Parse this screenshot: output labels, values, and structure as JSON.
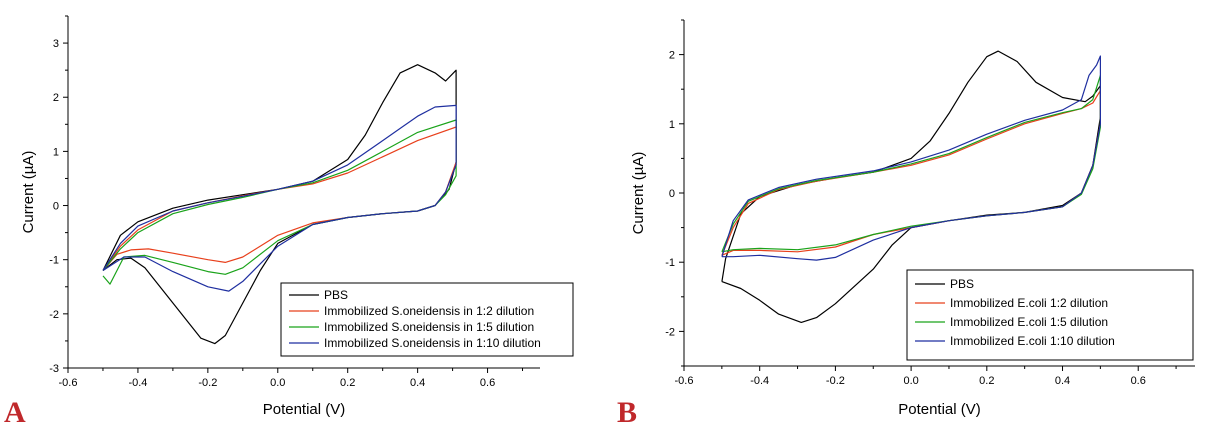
{
  "colors": {
    "PBS": "#000000",
    "red": "#e8401c",
    "green": "#1aa31a",
    "blue": "#1f2fa0",
    "panel_letter": "#c0282b"
  },
  "chart_data": [
    {
      "panel_label": "A",
      "type": "line",
      "xlabel": "Potential (V)",
      "ylabel": "Current (µA)",
      "xlim": [
        -0.6,
        0.75
      ],
      "ylim": [
        -3,
        3.5
      ],
      "xticks": [
        "-0.6",
        "-0.4",
        "-0.2",
        "0.0",
        "0.2",
        "0.4",
        "0.6"
      ],
      "yticks": [
        "-3",
        "-2",
        "-1",
        "0",
        "1",
        "2",
        "3"
      ],
      "xtick_values": [
        -0.6,
        -0.4,
        -0.2,
        0.0,
        0.2,
        0.4,
        0.6
      ],
      "ytick_values": [
        -3,
        -2,
        -1,
        0,
        1,
        2,
        3
      ],
      "legend_position": "lower-right",
      "series": [
        {
          "name": "PBS",
          "color": "#000000",
          "points": [
            [
              -0.5,
              -1.2
            ],
            [
              -0.45,
              -0.55
            ],
            [
              -0.4,
              -0.3
            ],
            [
              -0.3,
              -0.05
            ],
            [
              -0.2,
              0.1
            ],
            [
              -0.1,
              0.2
            ],
            [
              0.0,
              0.3
            ],
            [
              0.1,
              0.45
            ],
            [
              0.2,
              0.85
            ],
            [
              0.25,
              1.3
            ],
            [
              0.3,
              1.9
            ],
            [
              0.35,
              2.45
            ],
            [
              0.4,
              2.6
            ],
            [
              0.45,
              2.45
            ],
            [
              0.48,
              2.3
            ],
            [
              0.51,
              2.5
            ],
            [
              0.51,
              0.8
            ],
            [
              0.49,
              0.3
            ],
            [
              0.45,
              0.0
            ],
            [
              0.4,
              -0.1
            ],
            [
              0.3,
              -0.15
            ],
            [
              0.2,
              -0.22
            ],
            [
              0.1,
              -0.35
            ],
            [
              0.0,
              -0.7
            ],
            [
              -0.05,
              -1.2
            ],
            [
              -0.1,
              -1.8
            ],
            [
              -0.15,
              -2.4
            ],
            [
              -0.18,
              -2.55
            ],
            [
              -0.22,
              -2.45
            ],
            [
              -0.3,
              -1.8
            ],
            [
              -0.38,
              -1.15
            ],
            [
              -0.42,
              -0.97
            ],
            [
              -0.46,
              -1.0
            ],
            [
              -0.5,
              -1.2
            ]
          ]
        },
        {
          "name": "Immobilized S.oneidensis in 1:2 dilution",
          "color": "#e8401c",
          "points": [
            [
              -0.5,
              -1.2
            ],
            [
              -0.45,
              -0.75
            ],
            [
              -0.4,
              -0.45
            ],
            [
              -0.3,
              -0.1
            ],
            [
              -0.2,
              0.05
            ],
            [
              -0.1,
              0.18
            ],
            [
              0.0,
              0.3
            ],
            [
              0.1,
              0.4
            ],
            [
              0.2,
              0.6
            ],
            [
              0.3,
              0.9
            ],
            [
              0.4,
              1.2
            ],
            [
              0.51,
              1.45
            ],
            [
              0.51,
              0.8
            ],
            [
              0.48,
              0.25
            ],
            [
              0.45,
              0.0
            ],
            [
              0.4,
              -0.1
            ],
            [
              0.3,
              -0.15
            ],
            [
              0.2,
              -0.22
            ],
            [
              0.1,
              -0.32
            ],
            [
              0.0,
              -0.55
            ],
            [
              -0.1,
              -0.95
            ],
            [
              -0.15,
              -1.05
            ],
            [
              -0.2,
              -1.0
            ],
            [
              -0.3,
              -0.88
            ],
            [
              -0.37,
              -0.8
            ],
            [
              -0.42,
              -0.82
            ],
            [
              -0.46,
              -0.9
            ],
            [
              -0.5,
              -1.2
            ]
          ]
        },
        {
          "name": "Immobilized S.oneidensis in 1:5 dilution",
          "color": "#1aa31a",
          "points": [
            [
              -0.5,
              -1.2
            ],
            [
              -0.45,
              -0.8
            ],
            [
              -0.4,
              -0.5
            ],
            [
              -0.3,
              -0.15
            ],
            [
              -0.2,
              0.02
            ],
            [
              -0.1,
              0.15
            ],
            [
              0.0,
              0.3
            ],
            [
              0.1,
              0.42
            ],
            [
              0.2,
              0.65
            ],
            [
              0.3,
              1.0
            ],
            [
              0.4,
              1.35
            ],
            [
              0.51,
              1.58
            ],
            [
              0.51,
              0.55
            ],
            [
              0.48,
              0.2
            ],
            [
              0.45,
              0.0
            ],
            [
              0.4,
              -0.1
            ],
            [
              0.3,
              -0.15
            ],
            [
              0.2,
              -0.22
            ],
            [
              0.1,
              -0.35
            ],
            [
              0.0,
              -0.65
            ],
            [
              -0.1,
              -1.15
            ],
            [
              -0.15,
              -1.27
            ],
            [
              -0.2,
              -1.22
            ],
            [
              -0.3,
              -1.05
            ],
            [
              -0.38,
              -0.92
            ],
            [
              -0.44,
              -0.95
            ],
            [
              -0.48,
              -1.45
            ],
            [
              -0.5,
              -1.3
            ]
          ]
        },
        {
          "name": "Immobilized S.oneidensis in 1:10 dilution",
          "color": "#1f2fa0",
          "points": [
            [
              -0.5,
              -1.2
            ],
            [
              -0.45,
              -0.7
            ],
            [
              -0.4,
              -0.38
            ],
            [
              -0.3,
              -0.1
            ],
            [
              -0.2,
              0.05
            ],
            [
              -0.1,
              0.17
            ],
            [
              0.0,
              0.3
            ],
            [
              0.1,
              0.45
            ],
            [
              0.2,
              0.75
            ],
            [
              0.3,
              1.2
            ],
            [
              0.4,
              1.65
            ],
            [
              0.45,
              1.82
            ],
            [
              0.51,
              1.85
            ],
            [
              0.51,
              0.75
            ],
            [
              0.48,
              0.25
            ],
            [
              0.45,
              0.0
            ],
            [
              0.4,
              -0.1
            ],
            [
              0.3,
              -0.15
            ],
            [
              0.2,
              -0.22
            ],
            [
              0.1,
              -0.35
            ],
            [
              0.0,
              -0.75
            ],
            [
              -0.1,
              -1.4
            ],
            [
              -0.14,
              -1.58
            ],
            [
              -0.2,
              -1.5
            ],
            [
              -0.3,
              -1.22
            ],
            [
              -0.38,
              -0.95
            ],
            [
              -0.44,
              -0.95
            ],
            [
              -0.5,
              -1.2
            ]
          ]
        }
      ]
    },
    {
      "panel_label": "B",
      "type": "line",
      "xlabel": "Potential (V)",
      "ylabel": "Current (µA)",
      "xlim": [
        -0.6,
        0.75
      ],
      "ylim": [
        -2.5,
        2.5
      ],
      "xticks": [
        "-0.6",
        "-0.4",
        "-0.2",
        "0.0",
        "0.2",
        "0.4",
        "0.6"
      ],
      "yticks": [
        "-2",
        "-1",
        "0",
        "1",
        "2"
      ],
      "xtick_values": [
        -0.6,
        -0.4,
        -0.2,
        0.0,
        0.2,
        0.4,
        0.6
      ],
      "ytick_values": [
        -2,
        -1,
        0,
        1,
        2
      ],
      "legend_position": "lower-right",
      "series": [
        {
          "name": "PBS",
          "color": "#000000",
          "points": [
            [
              -0.5,
              -1.28
            ],
            [
              -0.49,
              -0.95
            ],
            [
              -0.45,
              -0.3
            ],
            [
              -0.4,
              -0.05
            ],
            [
              -0.3,
              0.12
            ],
            [
              -0.2,
              0.22
            ],
            [
              -0.1,
              0.3
            ],
            [
              0.0,
              0.5
            ],
            [
              0.05,
              0.75
            ],
            [
              0.1,
              1.15
            ],
            [
              0.15,
              1.6
            ],
            [
              0.2,
              1.97
            ],
            [
              0.23,
              2.05
            ],
            [
              0.28,
              1.9
            ],
            [
              0.33,
              1.6
            ],
            [
              0.4,
              1.38
            ],
            [
              0.46,
              1.32
            ],
            [
              0.48,
              1.4
            ],
            [
              0.5,
              1.55
            ],
            [
              0.5,
              1.1
            ],
            [
              0.48,
              0.4
            ],
            [
              0.45,
              0.0
            ],
            [
              0.4,
              -0.18
            ],
            [
              0.3,
              -0.28
            ],
            [
              0.2,
              -0.32
            ],
            [
              0.1,
              -0.4
            ],
            [
              0.0,
              -0.5
            ],
            [
              -0.05,
              -0.75
            ],
            [
              -0.1,
              -1.1
            ],
            [
              -0.2,
              -1.6
            ],
            [
              -0.25,
              -1.8
            ],
            [
              -0.29,
              -1.87
            ],
            [
              -0.35,
              -1.75
            ],
            [
              -0.4,
              -1.55
            ],
            [
              -0.45,
              -1.38
            ],
            [
              -0.5,
              -1.28
            ]
          ]
        },
        {
          "name": "Immobilized E.coli 1:2 dilution",
          "color": "#e8401c",
          "points": [
            [
              -0.5,
              -0.9
            ],
            [
              -0.47,
              -0.5
            ],
            [
              -0.43,
              -0.15
            ],
            [
              -0.35,
              0.05
            ],
            [
              -0.25,
              0.17
            ],
            [
              -0.1,
              0.3
            ],
            [
              0.0,
              0.4
            ],
            [
              0.1,
              0.55
            ],
            [
              0.2,
              0.78
            ],
            [
              0.3,
              1.0
            ],
            [
              0.4,
              1.15
            ],
            [
              0.45,
              1.22
            ],
            [
              0.48,
              1.3
            ],
            [
              0.5,
              1.48
            ],
            [
              0.5,
              1.0
            ],
            [
              0.48,
              0.4
            ],
            [
              0.45,
              0.0
            ],
            [
              0.4,
              -0.2
            ],
            [
              0.3,
              -0.28
            ],
            [
              0.2,
              -0.33
            ],
            [
              0.1,
              -0.4
            ],
            [
              0.0,
              -0.5
            ],
            [
              -0.1,
              -0.6
            ],
            [
              -0.2,
              -0.78
            ],
            [
              -0.3,
              -0.85
            ],
            [
              -0.4,
              -0.83
            ],
            [
              -0.47,
              -0.83
            ],
            [
              -0.5,
              -0.9
            ]
          ]
        },
        {
          "name": "Immobilized E.coli 1:5 dilution",
          "color": "#1aa31a",
          "points": [
            [
              -0.5,
              -0.85
            ],
            [
              -0.47,
              -0.45
            ],
            [
              -0.43,
              -0.12
            ],
            [
              -0.35,
              0.06
            ],
            [
              -0.25,
              0.18
            ],
            [
              -0.1,
              0.3
            ],
            [
              0.0,
              0.42
            ],
            [
              0.1,
              0.57
            ],
            [
              0.2,
              0.8
            ],
            [
              0.3,
              1.02
            ],
            [
              0.4,
              1.16
            ],
            [
              0.45,
              1.22
            ],
            [
              0.48,
              1.35
            ],
            [
              0.5,
              1.7
            ],
            [
              0.5,
              0.95
            ],
            [
              0.48,
              0.35
            ],
            [
              0.45,
              -0.02
            ],
            [
              0.4,
              -0.2
            ],
            [
              0.3,
              -0.28
            ],
            [
              0.2,
              -0.33
            ],
            [
              0.1,
              -0.4
            ],
            [
              0.0,
              -0.48
            ],
            [
              -0.1,
              -0.6
            ],
            [
              -0.2,
              -0.75
            ],
            [
              -0.3,
              -0.82
            ],
            [
              -0.4,
              -0.8
            ],
            [
              -0.47,
              -0.82
            ],
            [
              -0.5,
              -0.85
            ]
          ]
        },
        {
          "name": "Immobilized E.coli 1:10 dilution",
          "color": "#1f2fa0",
          "points": [
            [
              -0.5,
              -0.92
            ],
            [
              -0.47,
              -0.4
            ],
            [
              -0.43,
              -0.1
            ],
            [
              -0.35,
              0.08
            ],
            [
              -0.25,
              0.2
            ],
            [
              -0.1,
              0.32
            ],
            [
              0.0,
              0.45
            ],
            [
              0.1,
              0.62
            ],
            [
              0.2,
              0.85
            ],
            [
              0.3,
              1.05
            ],
            [
              0.4,
              1.2
            ],
            [
              0.45,
              1.35
            ],
            [
              0.47,
              1.7
            ],
            [
              0.49,
              1.85
            ],
            [
              0.5,
              1.98
            ],
            [
              0.5,
              1.0
            ],
            [
              0.48,
              0.4
            ],
            [
              0.45,
              0.0
            ],
            [
              0.4,
              -0.2
            ],
            [
              0.3,
              -0.28
            ],
            [
              0.2,
              -0.33
            ],
            [
              0.1,
              -0.4
            ],
            [
              0.0,
              -0.5
            ],
            [
              -0.1,
              -0.68
            ],
            [
              -0.2,
              -0.93
            ],
            [
              -0.25,
              -0.97
            ],
            [
              -0.3,
              -0.95
            ],
            [
              -0.4,
              -0.9
            ],
            [
              -0.47,
              -0.92
            ],
            [
              -0.5,
              -0.92
            ]
          ]
        }
      ]
    }
  ]
}
